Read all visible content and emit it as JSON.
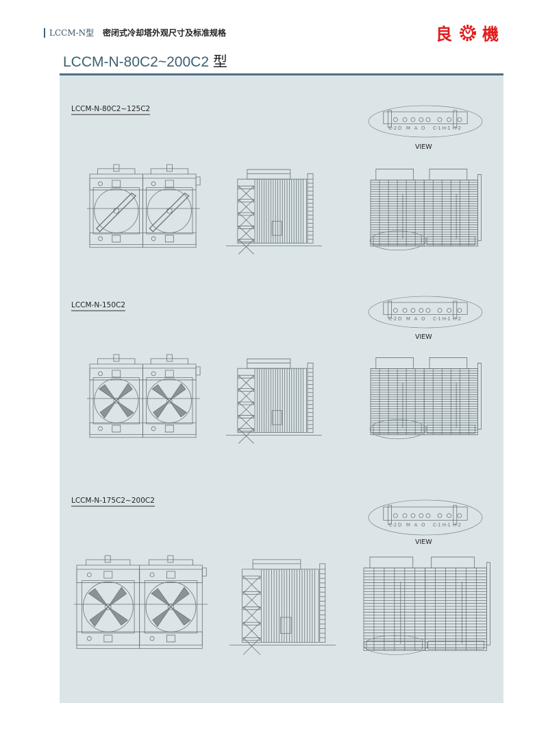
{
  "header": {
    "series": "LCCM-N型",
    "title": "密闭式冷却塔外观尺寸及标准规格",
    "logo_text": "良機",
    "brand_color": "#e01b1b",
    "accent_color": "#4f6f84"
  },
  "page_title": {
    "model_range": "LCCM-N-80C2~200C2",
    "suffix": "型"
  },
  "sections": [
    {
      "label": "LCCM-N-80C2~125C2",
      "view_label": "VIEW",
      "connection_labels": [
        "C-2",
        "D",
        "M",
        "A",
        "O",
        "C-1",
        "H-1",
        "H-2"
      ],
      "fan": "belt"
    },
    {
      "label": "LCCM-N-150C2",
      "view_label": "VIEW",
      "connection_labels": [
        "C-2",
        "D",
        "M",
        "A",
        "O",
        "C-1",
        "H-1",
        "H-2"
      ],
      "fan": "direct"
    },
    {
      "label": "LCCM-N-175C2~200C2",
      "view_label": "VIEW",
      "connection_labels": [
        "C-2",
        "D",
        "M",
        "A",
        "O",
        "C-1",
        "H-1",
        "H-2"
      ],
      "fan": "direct"
    }
  ]
}
